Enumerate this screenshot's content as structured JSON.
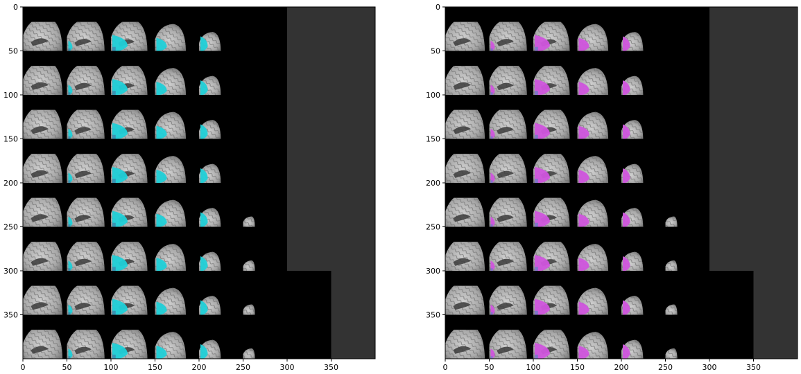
{
  "figure": {
    "panels": [
      {
        "id": "left",
        "x_ticks": [
          "0",
          "50",
          "100",
          "150",
          "200",
          "250",
          "300",
          "350"
        ],
        "y_ticks": [
          "0",
          "50",
          "100",
          "150",
          "200",
          "250",
          "300",
          "350"
        ],
        "overlay_color": "#20d0d8",
        "overlay_shade_color": "#3a8fb0"
      },
      {
        "id": "right",
        "x_ticks": [
          "0",
          "50",
          "100",
          "150",
          "200",
          "250",
          "300",
          "350"
        ],
        "y_ticks": [
          "0",
          "50",
          "100",
          "150",
          "200",
          "250",
          "300",
          "350"
        ],
        "overlay_color": "#d055dd",
        "overlay_shade_color": "#7a78c8"
      }
    ],
    "data_range": {
      "x": [
        0,
        400
      ],
      "y": [
        0,
        400
      ]
    },
    "background_colors": {
      "montage": "#000000",
      "empty_region": "#333333"
    },
    "montage_rows": 8,
    "montage_cols_full": 5,
    "tile_size_data_units": 50,
    "image_kind": "sagittal MRI brain slice montage with segmentation overlay"
  }
}
